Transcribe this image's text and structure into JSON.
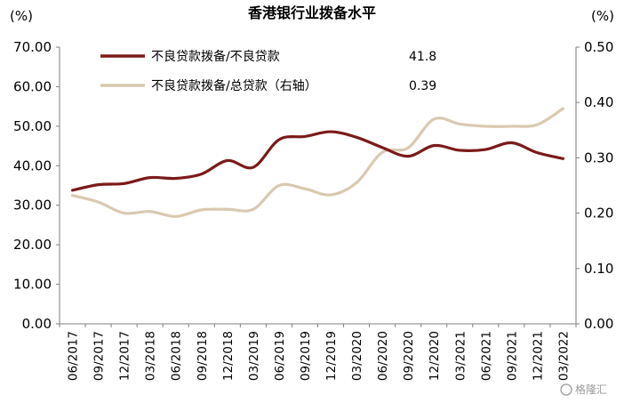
{
  "chart_data": {
    "type": "line",
    "title": "香港银行业拨备水平",
    "left_axis": {
      "unit": "(%)",
      "ylim": [
        0,
        70
      ],
      "ticks": [
        "0.00",
        "10.00",
        "20.00",
        "30.00",
        "40.00",
        "50.00",
        "60.00",
        "70.00"
      ]
    },
    "right_axis": {
      "unit": "(%)",
      "ylim": [
        0,
        0.5
      ],
      "ticks": [
        "0.00",
        "0.10",
        "0.20",
        "0.30",
        "0.40",
        "0.50"
      ]
    },
    "categories": [
      "06/2017",
      "09/2017",
      "12/2017",
      "03/2018",
      "06/2018",
      "09/2018",
      "12/2018",
      "03/2019",
      "06/2019",
      "09/2019",
      "12/2019",
      "03/2020",
      "06/2020",
      "09/2020",
      "12/2020",
      "03/2021",
      "06/2021",
      "09/2021",
      "12/2021",
      "03/2022"
    ],
    "series": [
      {
        "name": "不良贷款拨备/不良贷款",
        "axis": "left",
        "color": "#7b1a1a",
        "latest_label": "41.8",
        "values": [
          33.8,
          35.2,
          35.5,
          37.0,
          36.8,
          37.9,
          41.3,
          39.6,
          46.6,
          47.4,
          48.6,
          47.2,
          44.6,
          42.4,
          45.1,
          43.9,
          44.1,
          45.8,
          43.3,
          41.8
        ]
      },
      {
        "name": "不良贷款拨备/总贷款（右轴）",
        "axis": "right",
        "color": "#d9c9b0",
        "latest_label": "0.39",
        "values": [
          0.232,
          0.22,
          0.2,
          0.203,
          0.194,
          0.206,
          0.207,
          0.207,
          0.25,
          0.244,
          0.233,
          0.255,
          0.31,
          0.318,
          0.37,
          0.361,
          0.357,
          0.357,
          0.36,
          0.389
        ]
      }
    ],
    "legend_position": "top-left",
    "grid": false
  },
  "watermark": {
    "text": "格隆汇"
  }
}
